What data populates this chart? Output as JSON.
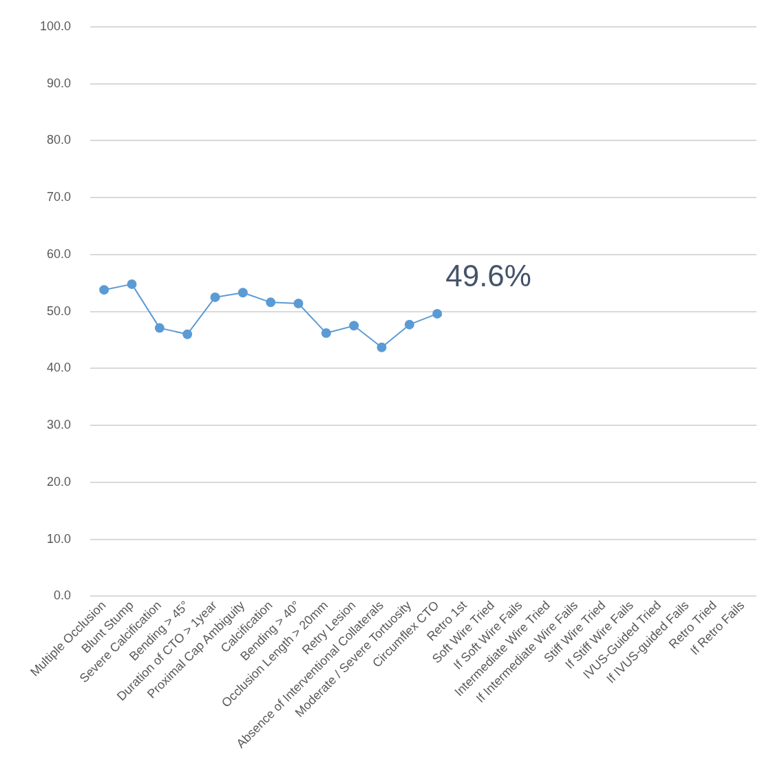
{
  "chart_data": {
    "type": "line",
    "categories": [
      "Multiple Occlusion",
      "Blunt Stump",
      "Severe Calcification",
      "Bending > 45°",
      "Duration of CTO > 1year",
      "Proximal Cap Ambiguity",
      "Calcification",
      "Bending > 40°",
      "Occlusion Length > 20mm",
      "Retry Lesion",
      "Absence of Interventional Collaterals",
      "Moderate / Severe Tortuosity",
      "Circumflex CTO",
      "Retro 1st",
      "Soft Wire Tried",
      "If Soft Wire Fails",
      "Intermediate Wire Tried",
      "If Intermediate Wire Fails",
      "Stiff Wire Tried",
      "If Stiff Wire Fails",
      "IVUS-Guided Tried",
      "If IVUS-guided Fails",
      "Retro Tried",
      "If Retro Fails"
    ],
    "series": [
      {
        "color": "#5b9bd5",
        "values": [
          53.8,
          54.8,
          47.1,
          46.0,
          52.5,
          53.3,
          51.6,
          51.4,
          46.2,
          47.5,
          43.7,
          47.7,
          49.6,
          null,
          null,
          null,
          null,
          null,
          null,
          null,
          null,
          null,
          null,
          null
        ]
      }
    ],
    "ylim": [
      0,
      100
    ],
    "yticks": [
      {
        "value": 0,
        "label": "0.0"
      },
      {
        "value": 10,
        "label": "10.0"
      },
      {
        "value": 20,
        "label": "20.0"
      },
      {
        "value": 30,
        "label": "30.0"
      },
      {
        "value": 40,
        "label": "40.0"
      },
      {
        "value": 50,
        "label": "50.0"
      },
      {
        "value": 60,
        "label": "60.0"
      },
      {
        "value": 70,
        "label": "70.0"
      },
      {
        "value": 80,
        "label": "80.0"
      },
      {
        "value": 90,
        "label": "90.0"
      },
      {
        "value": 100,
        "label": "100.0"
      }
    ],
    "grid": "y",
    "marker": "circle",
    "line_style": "solid",
    "legend": false,
    "annotations": [
      {
        "text": "49.6%",
        "x": "Circumflex CTO",
        "y": 49.6
      }
    ]
  }
}
